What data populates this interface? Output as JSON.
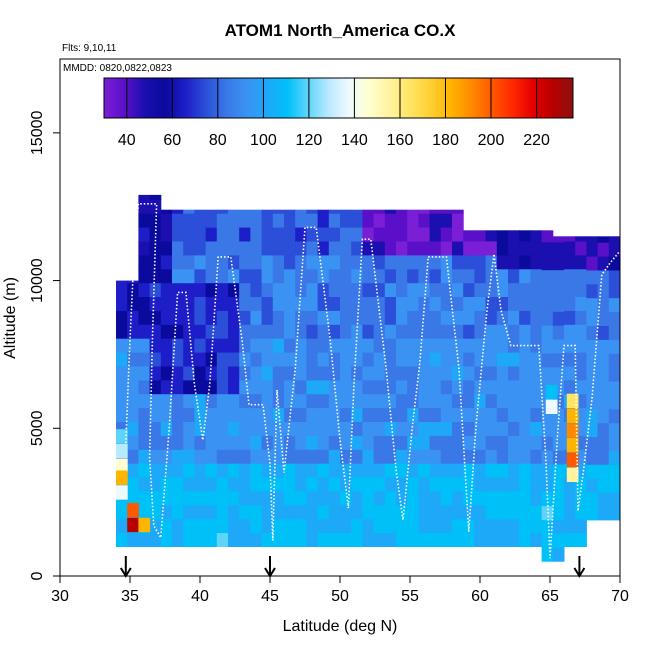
{
  "chart_data": {
    "type": "heatmap",
    "title": "ATOM1 North_America CO.X",
    "flights_label": "Flts: 9,10,11",
    "dates_label": "MMDD: 0820,0822,0823",
    "xlabel": "Latitude (deg N)",
    "ylabel": "Altitude (m)",
    "xlim": [
      30,
      70
    ],
    "ylim": [
      0,
      17500
    ],
    "x_ticks": [
      30,
      35,
      40,
      45,
      50,
      55,
      60,
      65,
      70
    ],
    "y_ticks": [
      0,
      5000,
      10000,
      15000
    ],
    "colorbar": {
      "range": [
        30,
        236
      ],
      "ticks": [
        40,
        60,
        80,
        100,
        120,
        140,
        160,
        180,
        200,
        220
      ],
      "colors": [
        "#7a1fd6",
        "#5a10c9",
        "#1b0fb0",
        "#0a0a9c",
        "#1e1ec8",
        "#2b4fd8",
        "#3a78e8",
        "#3a92f2",
        "#1ea8f8",
        "#00c0f8",
        "#5fd4fa",
        "#b7e9ff",
        "#eefaff",
        "#ffffd0",
        "#fff3a0",
        "#ffe566",
        "#ffcf33",
        "#ffb400",
        "#ff8a00",
        "#ff5a00",
        "#ff2a00",
        "#e60000",
        "#b80000",
        "#8c1010"
      ]
    },
    "arrow_latitudes": [
      34.7,
      45,
      67.1
    ],
    "flight_track": [
      [
        34.7,
        4500
      ],
      [
        35.0,
        8000
      ],
      [
        35.3,
        11000
      ],
      [
        35.6,
        12600
      ],
      [
        36.9,
        12600
      ],
      [
        36.6,
        8000
      ],
      [
        36.4,
        4000
      ],
      [
        36.7,
        1700
      ],
      [
        37.2,
        1300
      ],
      [
        37.8,
        5000
      ],
      [
        38.4,
        9600
      ],
      [
        39.0,
        9600
      ],
      [
        39.6,
        6500
      ],
      [
        40.2,
        4600
      ],
      [
        40.7,
        6500
      ],
      [
        41.3,
        10800
      ],
      [
        42.2,
        10800
      ],
      [
        43.0,
        8000
      ],
      [
        43.5,
        5800
      ],
      [
        44.5,
        5800
      ],
      [
        45.0,
        3800
      ],
      [
        45.2,
        1200
      ],
      [
        45.5,
        6300
      ],
      [
        46.0,
        3500
      ],
      [
        46.8,
        7000
      ],
      [
        47.5,
        11800
      ],
      [
        48.3,
        11800
      ],
      [
        49.3,
        8000
      ],
      [
        50.0,
        4600
      ],
      [
        50.6,
        2300
      ],
      [
        51.0,
        6500
      ],
      [
        51.6,
        11400
      ],
      [
        52.2,
        11400
      ],
      [
        53.3,
        7000
      ],
      [
        54.0,
        3600
      ],
      [
        54.5,
        1900
      ],
      [
        55.2,
        5200
      ],
      [
        55.7,
        7200
      ],
      [
        56.3,
        10800
      ],
      [
        57.6,
        10800
      ],
      [
        58.5,
        7000
      ],
      [
        59.2,
        1500
      ],
      [
        59.7,
        5000
      ],
      [
        60.5,
        9000
      ],
      [
        61.0,
        10900
      ],
      [
        61.5,
        9000
      ],
      [
        62.2,
        7800
      ],
      [
        64.2,
        7800
      ],
      [
        64.7,
        4000
      ],
      [
        65.0,
        600
      ],
      [
        65.5,
        4500
      ],
      [
        66.0,
        7800
      ],
      [
        66.8,
        7800
      ],
      [
        67.0,
        2200
      ],
      [
        67.4,
        3600
      ],
      [
        68.0,
        6000
      ],
      [
        68.7,
        10200
      ],
      [
        69.3,
        10600
      ],
      [
        70.0,
        11000
      ]
    ]
  }
}
